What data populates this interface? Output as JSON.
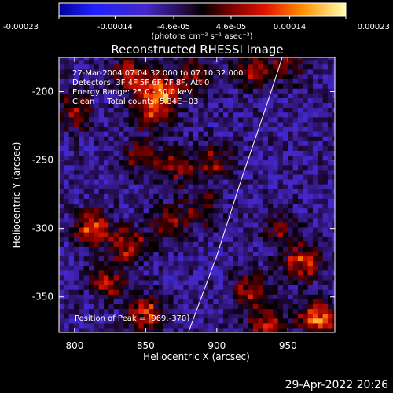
{
  "chart_data": {
    "type": "heatmap",
    "title": "Reconstructed RHESSI Image",
    "xlabel": "Heliocentric X (arcsec)",
    "ylabel": "Heliocentric Y (arcsec)",
    "xlim": [
      789,
      983
    ],
    "ylim": [
      -376,
      -175
    ],
    "x_ticks": [
      800,
      850,
      900,
      950
    ],
    "y_ticks": [
      -200,
      -250,
      -300,
      -350
    ],
    "colorbar": {
      "ticks": [
        "-0.00023",
        "-0.00014",
        "-4.6e-05",
        "4.6e-05",
        "0.00014",
        "0.00023"
      ],
      "range": [
        -0.00023,
        0.00023
      ],
      "unit_label": "(photons cm⁻² s⁻¹ asec⁻²)"
    },
    "annotations": [
      "27-Mar-2004 07:04:32.000 to 07:10:32.000",
      "Detectors: 3F 4F 5F 6F 7F 8F, Att 0",
      "Energy Range: 25.0 - 50.0 keV",
      "Clean     Total counts: 5.34E+03"
    ],
    "peak_label": "Position of Peak = [969,-370]",
    "limb": [
      [
        880,
        -376
      ],
      [
        900,
        -320
      ],
      [
        917,
        -265
      ],
      [
        935,
        -210
      ],
      [
        946,
        -175
      ]
    ],
    "blobs": [
      {
        "x": 862,
        "y": -200,
        "amp": 0.0002
      },
      {
        "x": 840,
        "y": -187,
        "amp": 0.00016
      },
      {
        "x": 853,
        "y": -215,
        "amp": 0.00015
      },
      {
        "x": 885,
        "y": -188,
        "amp": 0.00012
      },
      {
        "x": 925,
        "y": -183,
        "amp": 0.00013
      },
      {
        "x": 950,
        "y": -180,
        "amp": 0.00011
      },
      {
        "x": 870,
        "y": -255,
        "amp": 0.00014
      },
      {
        "x": 846,
        "y": -248,
        "amp": 0.0001
      },
      {
        "x": 898,
        "y": -250,
        "amp": 0.00012
      },
      {
        "x": 812,
        "y": -300,
        "amp": 0.0002
      },
      {
        "x": 838,
        "y": -312,
        "amp": 0.00015
      },
      {
        "x": 822,
        "y": -338,
        "amp": 0.00014
      },
      {
        "x": 866,
        "y": -296,
        "amp": 0.00012
      },
      {
        "x": 850,
        "y": -362,
        "amp": 0.00018
      },
      {
        "x": 890,
        "y": -285,
        "amp": 0.00011
      },
      {
        "x": 925,
        "y": -345,
        "amp": 0.00016
      },
      {
        "x": 960,
        "y": -325,
        "amp": 0.00017
      },
      {
        "x": 972,
        "y": -365,
        "amp": 0.00023
      },
      {
        "x": 935,
        "y": -372,
        "amp": 0.00015
      },
      {
        "x": 945,
        "y": -300,
        "amp": 0.0001
      },
      {
        "x": 800,
        "y": -215,
        "amp": 0.00011
      }
    ]
  }
}
